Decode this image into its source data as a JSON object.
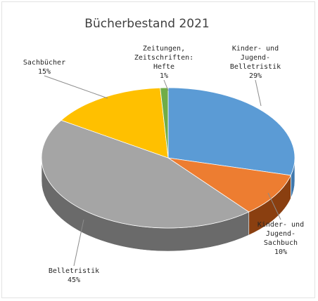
{
  "chart_data": {
    "type": "pie",
    "title": "Bücherbestand 2021",
    "slices": [
      {
        "label_lines": [
          "Kinder- und",
          "Jugend-",
          "Belletristik"
        ],
        "value_text": "29%",
        "value": 29,
        "color": "#5b9bd5",
        "side": "#3f78ad"
      },
      {
        "label_lines": [
          "Kinder- und",
          "Jugend-",
          "Sachbuch"
        ],
        "value_text": "10%",
        "value": 10,
        "color": "#ed7d31",
        "side": "#8a3f10"
      },
      {
        "label_lines": [
          "Belletristik"
        ],
        "value_text": "45%",
        "value": 45,
        "color": "#a5a5a5",
        "side": "#6a6a6a"
      },
      {
        "label_lines": [
          "Sachbücher"
        ],
        "value_text": "15%",
        "value": 15,
        "color": "#ffc000",
        "side": "#b88a00"
      },
      {
        "label_lines": [
          "Zeitungen,",
          "Zeitschriften:",
          "Hefte"
        ],
        "value_text": "1%",
        "value": 1,
        "color": "#70ad47",
        "side": "#4b7a2e"
      }
    ],
    "legend": "none",
    "style": "3d-pie"
  }
}
